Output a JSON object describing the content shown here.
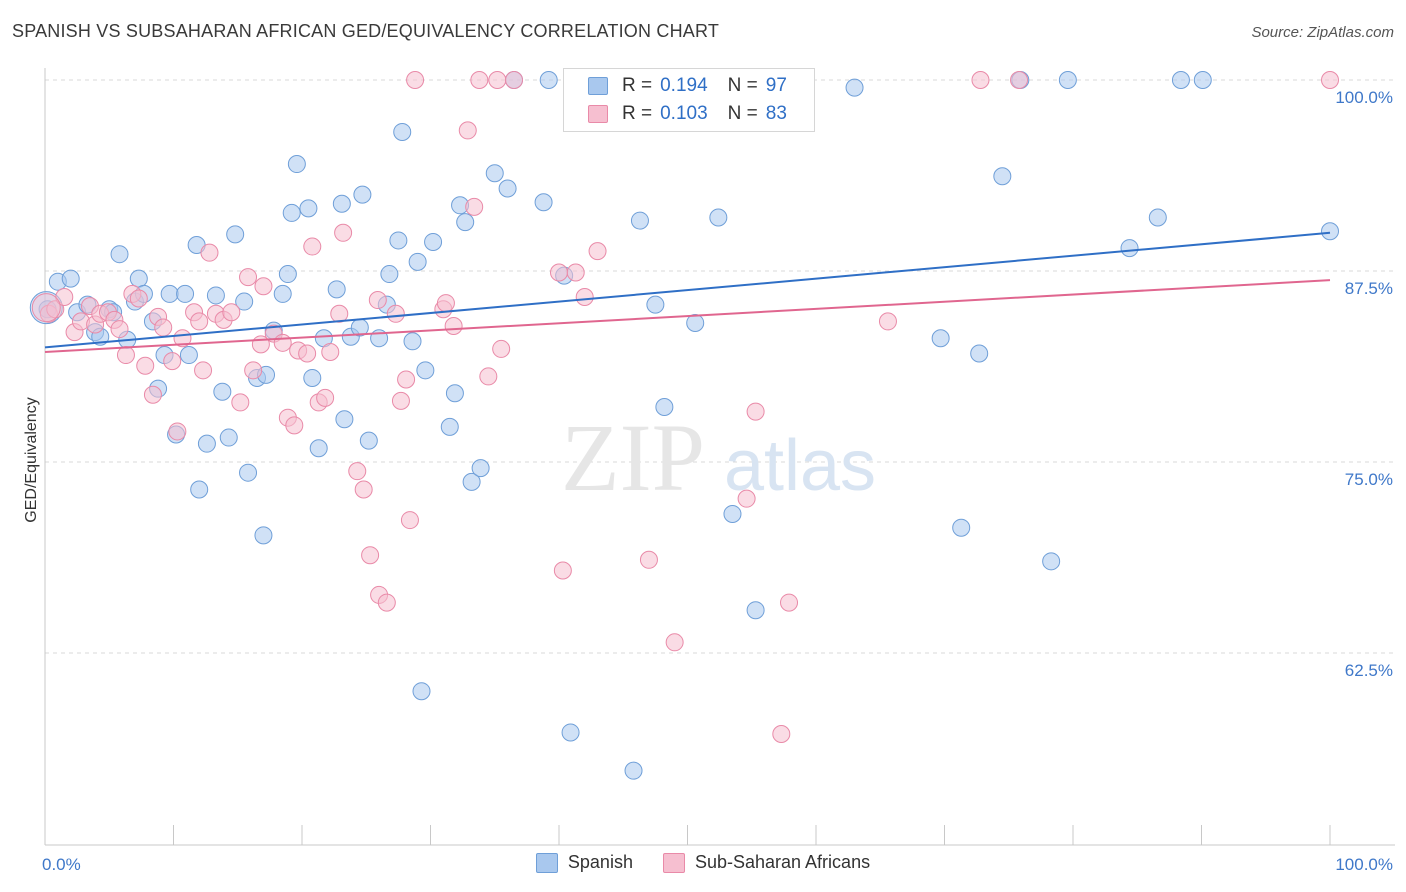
{
  "header": {
    "title": "SPANISH VS SUBSAHARAN AFRICAN GED/EQUIVALENCY CORRELATION CHART",
    "source": "Source: ZipAtlas.com"
  },
  "watermark": {
    "zip": "ZIP",
    "atlas": "atlas"
  },
  "legend": {
    "rows": [
      {
        "r_label": "R =",
        "r_value": "0.194",
        "n_label": "N =",
        "n_value": "97",
        "color": "#a9c8ee",
        "border": "#6f9fd8"
      },
      {
        "r_label": "R =",
        "r_value": "0.103",
        "n_label": "N =",
        "n_value": "83",
        "color": "#f6bfd0",
        "border": "#e98aa8"
      }
    ]
  },
  "bottom_legend": [
    {
      "label": "Spanish",
      "color": "#a9c8ee",
      "border": "#6f9fd8"
    },
    {
      "label": "Sub-Saharan Africans",
      "color": "#f6bfd0",
      "border": "#e98aa8"
    }
  ],
  "chart_data": {
    "type": "scatter",
    "title": "SPANISH VS SUBSAHARAN AFRICAN GED/EQUIVALENCY CORRELATION CHART",
    "xlabel": "",
    "ylabel": "GED/Equivalency",
    "xlim": [
      0,
      100
    ],
    "ylim": [
      51,
      101
    ],
    "x_tick_labels": [
      "0.0%",
      "100.0%"
    ],
    "y_ticks": [
      {
        "value": 100,
        "label": "100.0%"
      },
      {
        "value": 87.5,
        "label": "87.5%"
      },
      {
        "value": 75,
        "label": "75.0%"
      },
      {
        "value": 62.5,
        "label": "62.5%"
      }
    ],
    "grid": "horizontal dashed",
    "series": [
      {
        "name": "Spanish",
        "color": "#6f9fd8",
        "fill": "#a9c8ee",
        "trend": {
          "x0": 0,
          "y0": 82.5,
          "x1": 100,
          "y1": 90.0,
          "color": "#2f6fc6"
        },
        "points": [
          [
            0.2,
            85.0
          ],
          [
            1.0,
            86.8
          ],
          [
            2.0,
            87.0
          ],
          [
            2.5,
            84.8
          ],
          [
            3.3,
            85.3
          ],
          [
            3.9,
            83.5
          ],
          [
            4.3,
            83.2
          ],
          [
            5.0,
            85.0
          ],
          [
            5.3,
            84.8
          ],
          [
            5.8,
            88.6
          ],
          [
            6.4,
            83.0
          ],
          [
            7.0,
            85.5
          ],
          [
            7.3,
            87.0
          ],
          [
            7.7,
            86.0
          ],
          [
            8.4,
            84.2
          ],
          [
            8.8,
            79.8
          ],
          [
            9.3,
            82.0
          ],
          [
            9.7,
            86.0
          ],
          [
            10.2,
            76.8
          ],
          [
            10.9,
            86.0
          ],
          [
            11.2,
            82.0
          ],
          [
            11.8,
            89.2
          ],
          [
            12.0,
            73.2
          ],
          [
            12.6,
            76.2
          ],
          [
            13.3,
            85.9
          ],
          [
            13.8,
            79.6
          ],
          [
            14.3,
            76.6
          ],
          [
            14.8,
            89.9
          ],
          [
            15.5,
            85.5
          ],
          [
            15.8,
            74.3
          ],
          [
            16.5,
            80.5
          ],
          [
            17.0,
            70.2
          ],
          [
            17.2,
            80.7
          ],
          [
            17.8,
            83.6
          ],
          [
            18.5,
            86.0
          ],
          [
            18.9,
            87.3
          ],
          [
            19.2,
            91.3
          ],
          [
            19.6,
            94.5
          ],
          [
            20.5,
            91.6
          ],
          [
            20.8,
            80.5
          ],
          [
            21.3,
            75.9
          ],
          [
            21.7,
            83.1
          ],
          [
            22.7,
            86.3
          ],
          [
            23.1,
            91.9
          ],
          [
            23.3,
            77.8
          ],
          [
            23.8,
            83.2
          ],
          [
            24.5,
            83.8
          ],
          [
            24.7,
            92.5
          ],
          [
            25.2,
            76.4
          ],
          [
            26.0,
            83.1
          ],
          [
            26.6,
            85.3
          ],
          [
            26.8,
            87.3
          ],
          [
            27.5,
            89.5
          ],
          [
            27.8,
            96.6
          ],
          [
            28.6,
            82.9
          ],
          [
            29.0,
            88.1
          ],
          [
            29.3,
            60.0
          ],
          [
            29.6,
            81.0
          ],
          [
            30.2,
            89.4
          ],
          [
            31.5,
            77.3
          ],
          [
            31.9,
            79.5
          ],
          [
            32.3,
            91.8
          ],
          [
            32.7,
            90.7
          ],
          [
            33.2,
            73.7
          ],
          [
            33.9,
            74.6
          ],
          [
            35.0,
            93.9
          ],
          [
            36.0,
            92.9
          ],
          [
            36.5,
            100.0
          ],
          [
            38.8,
            92.0
          ],
          [
            39.2,
            100.0
          ],
          [
            40.4,
            87.2
          ],
          [
            40.9,
            57.3
          ],
          [
            41.5,
            100.0
          ],
          [
            45.8,
            54.8
          ],
          [
            46.3,
            90.8
          ],
          [
            47.5,
            85.3
          ],
          [
            48.2,
            78.6
          ],
          [
            49.0,
            100.0
          ],
          [
            50.6,
            84.1
          ],
          [
            52.4,
            91.0
          ],
          [
            53.5,
            71.6
          ],
          [
            55.3,
            65.3
          ],
          [
            56.0,
            100.0
          ],
          [
            57.0,
            100.0
          ],
          [
            63.0,
            99.5
          ],
          [
            69.7,
            83.1
          ],
          [
            71.3,
            70.7
          ],
          [
            72.7,
            82.1
          ],
          [
            74.5,
            93.7
          ],
          [
            75.9,
            100.0
          ],
          [
            78.3,
            68.5
          ],
          [
            79.6,
            100.0
          ],
          [
            84.4,
            89.0
          ],
          [
            86.6,
            91.0
          ],
          [
            88.4,
            100.0
          ],
          [
            90.1,
            100.0
          ],
          [
            100.0,
            90.1
          ]
        ]
      },
      {
        "name": "Sub-Saharan Africans",
        "color": "#e98aa8",
        "fill": "#f6bfd0",
        "trend": {
          "x0": 0,
          "y0": 82.2,
          "x1": 100,
          "y1": 86.9,
          "color": "#e0668f"
        },
        "points": [
          [
            0.3,
            84.7
          ],
          [
            0.8,
            85.0
          ],
          [
            1.5,
            85.8
          ],
          [
            2.3,
            83.5
          ],
          [
            2.8,
            84.2
          ],
          [
            3.5,
            85.2
          ],
          [
            3.9,
            84.0
          ],
          [
            4.3,
            84.7
          ],
          [
            4.9,
            84.8
          ],
          [
            5.4,
            84.3
          ],
          [
            5.8,
            83.7
          ],
          [
            6.3,
            82.0
          ],
          [
            6.8,
            86.0
          ],
          [
            7.3,
            85.7
          ],
          [
            7.8,
            81.3
          ],
          [
            8.4,
            79.4
          ],
          [
            8.8,
            84.5
          ],
          [
            9.2,
            83.8
          ],
          [
            9.9,
            81.6
          ],
          [
            10.3,
            77.0
          ],
          [
            10.7,
            83.1
          ],
          [
            11.6,
            84.8
          ],
          [
            12.0,
            84.2
          ],
          [
            12.3,
            81.0
          ],
          [
            12.8,
            88.7
          ],
          [
            13.3,
            84.7
          ],
          [
            13.9,
            84.3
          ],
          [
            14.5,
            84.8
          ],
          [
            15.2,
            78.9
          ],
          [
            15.8,
            87.1
          ],
          [
            16.2,
            81.0
          ],
          [
            16.8,
            82.7
          ],
          [
            17.0,
            86.5
          ],
          [
            17.8,
            83.4
          ],
          [
            18.5,
            82.8
          ],
          [
            18.9,
            77.9
          ],
          [
            19.4,
            77.4
          ],
          [
            19.7,
            82.3
          ],
          [
            20.4,
            82.1
          ],
          [
            20.8,
            89.1
          ],
          [
            21.3,
            78.9
          ],
          [
            21.8,
            79.2
          ],
          [
            22.2,
            82.2
          ],
          [
            22.9,
            84.7
          ],
          [
            23.2,
            90.0
          ],
          [
            24.3,
            74.4
          ],
          [
            24.8,
            73.2
          ],
          [
            25.3,
            68.9
          ],
          [
            25.9,
            85.6
          ],
          [
            26.0,
            66.3
          ],
          [
            26.6,
            65.8
          ],
          [
            27.3,
            84.7
          ],
          [
            27.7,
            79.0
          ],
          [
            28.1,
            80.4
          ],
          [
            28.4,
            71.2
          ],
          [
            28.8,
            100.0
          ],
          [
            31.0,
            85.0
          ],
          [
            31.2,
            85.4
          ],
          [
            31.8,
            83.9
          ],
          [
            32.9,
            96.7
          ],
          [
            33.4,
            91.7
          ],
          [
            33.8,
            100.0
          ],
          [
            34.5,
            80.6
          ],
          [
            35.2,
            100.0
          ],
          [
            35.5,
            82.4
          ],
          [
            36.5,
            100.0
          ],
          [
            40.0,
            87.4
          ],
          [
            40.3,
            67.9
          ],
          [
            41.3,
            87.4
          ],
          [
            42.0,
            85.8
          ],
          [
            43.0,
            88.8
          ],
          [
            47.0,
            68.6
          ],
          [
            49.0,
            63.2
          ],
          [
            50.3,
            100.0
          ],
          [
            52.7,
            100.0
          ],
          [
            54.6,
            72.6
          ],
          [
            55.3,
            78.3
          ],
          [
            57.3,
            57.2
          ],
          [
            57.9,
            65.8
          ],
          [
            65.6,
            84.2
          ],
          [
            72.8,
            100.0
          ],
          [
            75.8,
            100.0
          ],
          [
            100.0,
            100.0
          ]
        ]
      }
    ]
  }
}
